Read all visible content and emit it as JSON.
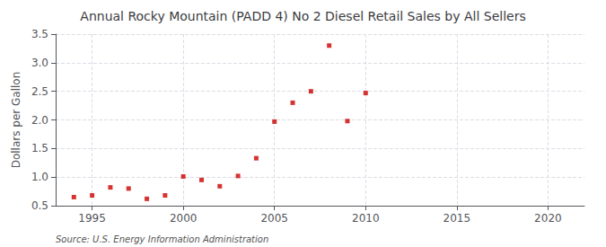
{
  "chart_data": {
    "type": "scatter",
    "title": "Annual Rocky Mountain (PADD 4) No 2 Diesel Retail Sales by All Sellers",
    "ylabel": "Dollars per Gallon",
    "source": "Source: U.S. Energy Information Administration",
    "x": [
      1994,
      1995,
      1996,
      1997,
      1998,
      1999,
      2000,
      2001,
      2002,
      2003,
      2004,
      2005,
      2006,
      2007,
      2008,
      2009,
      2010
    ],
    "values": [
      0.65,
      0.68,
      0.82,
      0.8,
      0.62,
      0.68,
      1.01,
      0.95,
      0.84,
      1.02,
      1.33,
      1.97,
      2.3,
      2.5,
      3.3,
      1.98,
      2.47
    ],
    "color": "#cc0000",
    "marker": "square",
    "xlim": [
      1993,
      2022
    ],
    "xticks": [
      1995,
      2000,
      2005,
      2010,
      2015,
      2020
    ],
    "ylim": [
      0.5,
      3.5
    ],
    "yticks": [
      0.5,
      {
        "value": 1.0,
        "label": "1.0"
      },
      1.5,
      {
        "value": 2.0,
        "label": "2.0"
      },
      2.5,
      {
        "value": 3.0,
        "label": "3.0"
      },
      3.5
    ],
    "grid": true
  }
}
